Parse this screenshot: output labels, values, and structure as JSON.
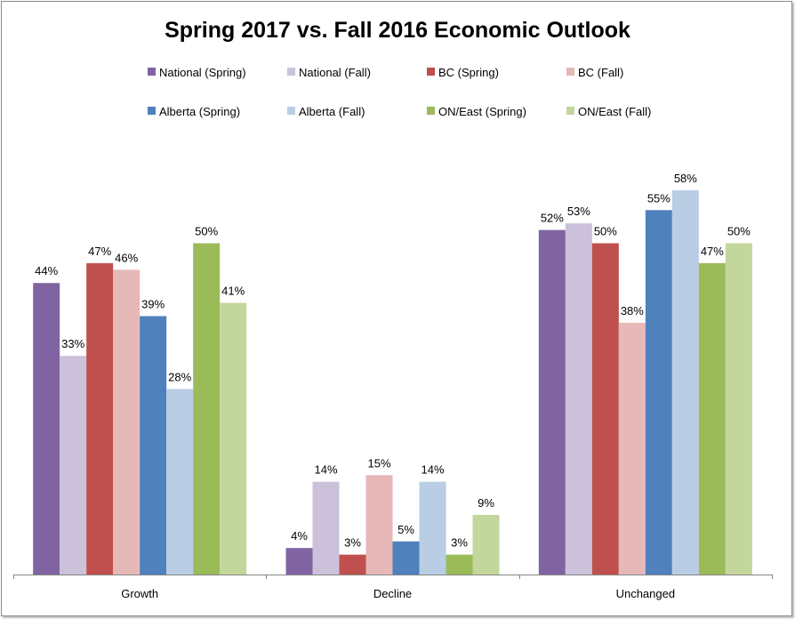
{
  "chart_data": {
    "type": "bar",
    "title": "Spring 2017 vs. Fall 2016 Economic Outlook",
    "xlabel": "",
    "ylabel": "",
    "ylim": [
      0,
      70
    ],
    "grid": false,
    "legend_position": "top",
    "value_suffix": "%",
    "categories": [
      "Growth",
      "Decline",
      "Unchanged"
    ],
    "series": [
      {
        "name": "National (Spring)",
        "color": "#8064a2",
        "values": [
          44,
          4,
          52
        ]
      },
      {
        "name": "National (Fall)",
        "color": "#ccc1da",
        "values": [
          33,
          14,
          53
        ]
      },
      {
        "name": "BC (Spring)",
        "color": "#c0504d",
        "values": [
          47,
          3,
          50
        ]
      },
      {
        "name": "BC (Fall)",
        "color": "#e6b9b8",
        "values": [
          46,
          15,
          38
        ]
      },
      {
        "name": "Alberta (Spring)",
        "color": "#4f81bd",
        "values": [
          39,
          5,
          55
        ]
      },
      {
        "name": "Alberta (Fall)",
        "color": "#b9cde5",
        "values": [
          28,
          14,
          58
        ]
      },
      {
        "name": "ON/East (Spring)",
        "color": "#9bbb59",
        "values": [
          50,
          3,
          47
        ]
      },
      {
        "name": "ON/East (Fall)",
        "color": "#c3d69b",
        "values": [
          41,
          9,
          50
        ]
      }
    ]
  }
}
